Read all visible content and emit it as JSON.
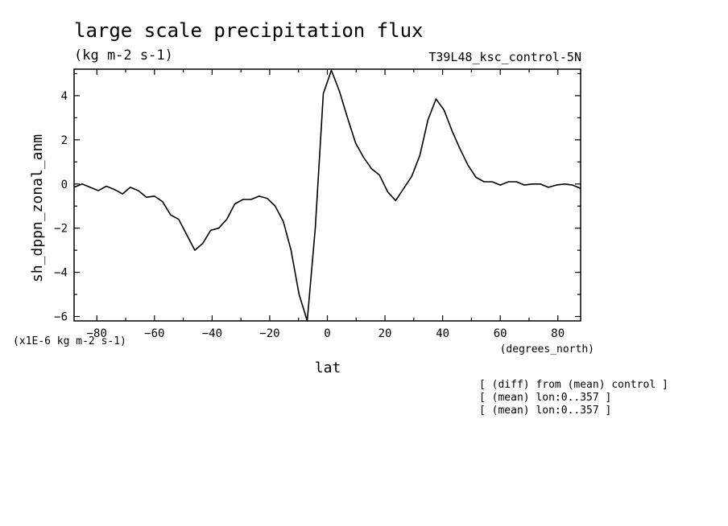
{
  "chart_data": {
    "type": "line",
    "title": "large scale precipitation flux",
    "units_label": "(kg m-2 s-1)",
    "dataset_label": "T39L48_ksc_control-5N",
    "xlabel": "lat",
    "xunits": "(degrees_north)",
    "ylabel": "sh_dppn_zonal_anm",
    "yscale_note": "(x1E-6 kg m-2 s-1)",
    "xlim": [
      -87.9,
      87.9
    ],
    "ylim": [
      -6.2,
      5.2
    ],
    "xticks": [
      -80,
      -60,
      -40,
      -20,
      0,
      20,
      40,
      60,
      80
    ],
    "yticks": [
      -6,
      -4,
      -2,
      0,
      2,
      4
    ],
    "grid": false,
    "notes": [
      "[ (diff) from (mean) control ]",
      "[ (mean) lon:0..357 ]",
      "[ (mean) lon:0..357 ]"
    ],
    "series": [
      {
        "x": [
          -87.9,
          -85.1,
          -82.3,
          -79.5,
          -76.7,
          -73.9,
          -71.1,
          -68.4,
          -65.6,
          -62.8,
          -60.0,
          -57.2,
          -54.4,
          -51.6,
          -48.8,
          -46.0,
          -43.3,
          -40.5,
          -37.7,
          -34.9,
          -32.1,
          -29.3,
          -26.5,
          -23.7,
          -20.9,
          -18.1,
          -15.3,
          -12.6,
          -9.8,
          -7.0,
          -4.2,
          -1.4,
          1.4,
          4.2,
          7.0,
          9.8,
          12.6,
          15.3,
          18.1,
          20.9,
          23.7,
          26.5,
          29.3,
          32.1,
          34.9,
          37.7,
          40.5,
          43.3,
          46.0,
          48.8,
          51.6,
          54.4,
          57.2,
          60.0,
          62.8,
          65.6,
          68.4,
          71.1,
          73.9,
          76.7,
          79.5,
          82.3,
          85.1,
          87.9
        ],
        "y": [
          -0.15,
          0.0,
          -0.15,
          -0.3,
          -0.1,
          -0.25,
          -0.45,
          -0.15,
          -0.3,
          -0.6,
          -0.55,
          -0.8,
          -1.4,
          -1.6,
          -2.3,
          -3.0,
          -2.7,
          -2.1,
          -2.0,
          -1.6,
          -0.9,
          -0.7,
          -0.7,
          -0.55,
          -0.65,
          -1.0,
          -1.7,
          -3.0,
          -5.0,
          -6.2,
          -2.0,
          4.1,
          5.15,
          4.2,
          3.0,
          1.85,
          1.2,
          0.7,
          0.4,
          -0.35,
          -0.75,
          -0.2,
          0.35,
          1.3,
          2.9,
          3.85,
          3.35,
          2.4,
          1.6,
          0.85,
          0.3,
          0.1,
          0.1,
          -0.05,
          0.1,
          0.1,
          -0.05,
          0.0,
          0.0,
          -0.15,
          -0.05,
          0.0,
          -0.05,
          -0.2
        ]
      }
    ]
  }
}
